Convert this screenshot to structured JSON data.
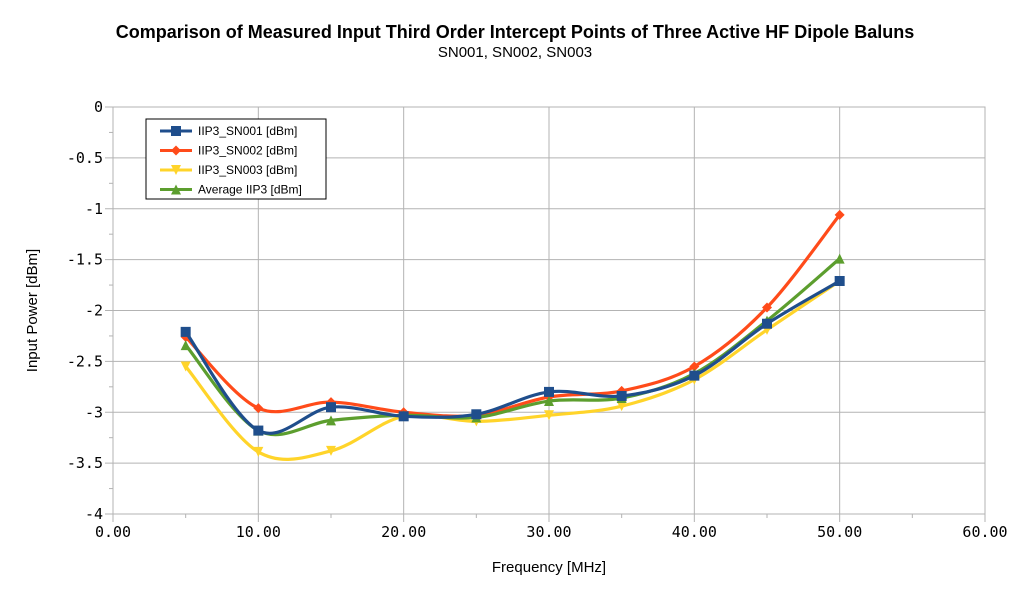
{
  "chart_data": {
    "type": "line",
    "title": "Comparison of Measured Input Third Order Intercept Points of Three Active HF Dipole Baluns",
    "subtitle": "SN001, SN002, SN003",
    "xlabel": "Frequency [MHz]",
    "ylabel": "Input Power [dBm]",
    "xlim": [
      0,
      60
    ],
    "ylim": [
      -4,
      0
    ],
    "x_ticks": [
      "0.00",
      "10.00",
      "20.00",
      "30.00",
      "40.00",
      "50.00",
      "60.00"
    ],
    "y_ticks": [
      "0",
      "-0.5",
      "-1",
      "-1.5",
      "-2",
      "-2.5",
      "-3",
      "-3.5",
      "-4"
    ],
    "grid": true,
    "legend_position": "top-left",
    "x": [
      5,
      10,
      15,
      20,
      25,
      30,
      35,
      40,
      45,
      50
    ],
    "series": [
      {
        "name": "IIP3_SN001 [dBm]",
        "color": "#1f4e8c",
        "marker": "square",
        "x": [
          5,
          10,
          15,
          20,
          25,
          30,
          35,
          40,
          45,
          50
        ],
        "values": [
          -2.21,
          -3.18,
          -2.95,
          -3.04,
          -3.02,
          -2.8,
          -2.84,
          -2.64,
          -2.13,
          -1.71
        ]
      },
      {
        "name": "IIP3_SN002 [dBm]",
        "color": "#ff4b1a",
        "marker": "diamond",
        "x": [
          5,
          10,
          15,
          20,
          25,
          30,
          35,
          40,
          45,
          50
        ],
        "values": [
          -2.26,
          -2.96,
          -2.9,
          -3.0,
          -3.03,
          -2.85,
          -2.79,
          -2.55,
          -1.97,
          -1.06
        ]
      },
      {
        "name": "IIP3_SN003 [dBm]",
        "color": "#ffd42a",
        "marker": "triangle-down",
        "x": [
          5,
          10,
          15,
          20,
          25,
          30,
          35,
          40,
          45,
          50
        ],
        "values": [
          -2.55,
          -3.39,
          -3.38,
          -3.04,
          -3.09,
          -3.03,
          -2.94,
          -2.68,
          -2.19,
          -1.71
        ]
      },
      {
        "name": "Average IIP3 [dBm]",
        "color": "#5c9e2e",
        "marker": "triangle-up",
        "x": [
          5,
          10,
          15,
          20,
          25,
          30,
          35,
          40,
          45,
          50
        ],
        "values": [
          -2.34,
          -3.18,
          -3.08,
          -3.03,
          -3.05,
          -2.89,
          -2.86,
          -2.62,
          -2.1,
          -1.49
        ]
      }
    ]
  }
}
